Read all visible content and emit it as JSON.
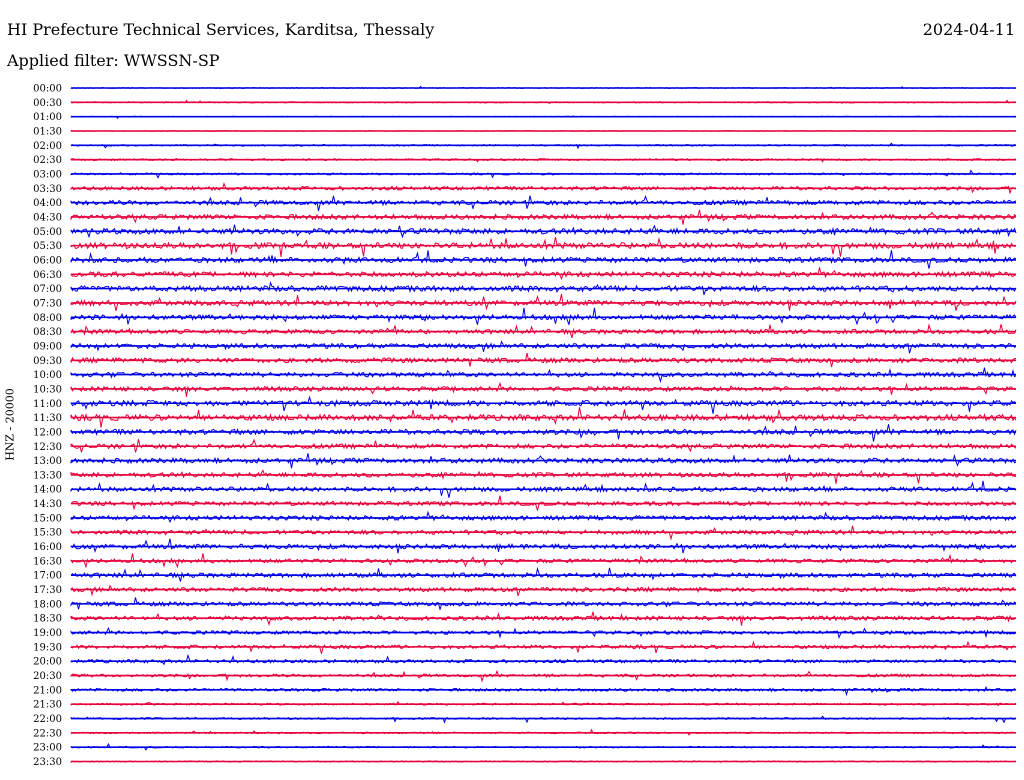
{
  "header": {
    "title": "HI Prefecture Technical Services, Karditsa, Thessaly",
    "date": "2024-04-11",
    "filter": "Applied filter: WWSSN-SP"
  },
  "chart_data": {
    "type": "line",
    "ylabel": "HNZ - 20000",
    "row_labels": [
      "00:00",
      "00:30",
      "01:00",
      "01:30",
      "02:00",
      "02:30",
      "03:00",
      "03:30",
      "04:00",
      "04:30",
      "05:00",
      "05:30",
      "06:00",
      "06:30",
      "07:00",
      "07:30",
      "08:00",
      "08:30",
      "09:00",
      "09:30",
      "10:00",
      "10:30",
      "11:00",
      "11:30",
      "12:00",
      "12:30",
      "13:00",
      "13:30",
      "14:00",
      "14:30",
      "15:00",
      "15:30",
      "16:00",
      "16:30",
      "17:00",
      "17:30",
      "18:00",
      "18:30",
      "19:00",
      "19:30",
      "20:00",
      "20:30",
      "21:00",
      "21:30",
      "22:00",
      "22:30",
      "23:00",
      "23:30"
    ],
    "colors": [
      "#0000e6",
      "#e6003c"
    ],
    "noise_level": [
      0.15,
      0.2,
      0.12,
      0.1,
      0.25,
      0.3,
      0.3,
      0.55,
      0.7,
      0.75,
      0.85,
      0.9,
      0.8,
      0.8,
      0.85,
      0.8,
      0.75,
      0.7,
      0.75,
      0.75,
      0.7,
      0.7,
      0.85,
      0.9,
      0.8,
      0.7,
      0.75,
      0.7,
      0.7,
      0.65,
      0.7,
      0.65,
      0.7,
      0.6,
      0.7,
      0.65,
      0.65,
      0.65,
      0.55,
      0.55,
      0.5,
      0.45,
      0.45,
      0.3,
      0.3,
      0.25,
      0.25,
      0.2
    ]
  }
}
